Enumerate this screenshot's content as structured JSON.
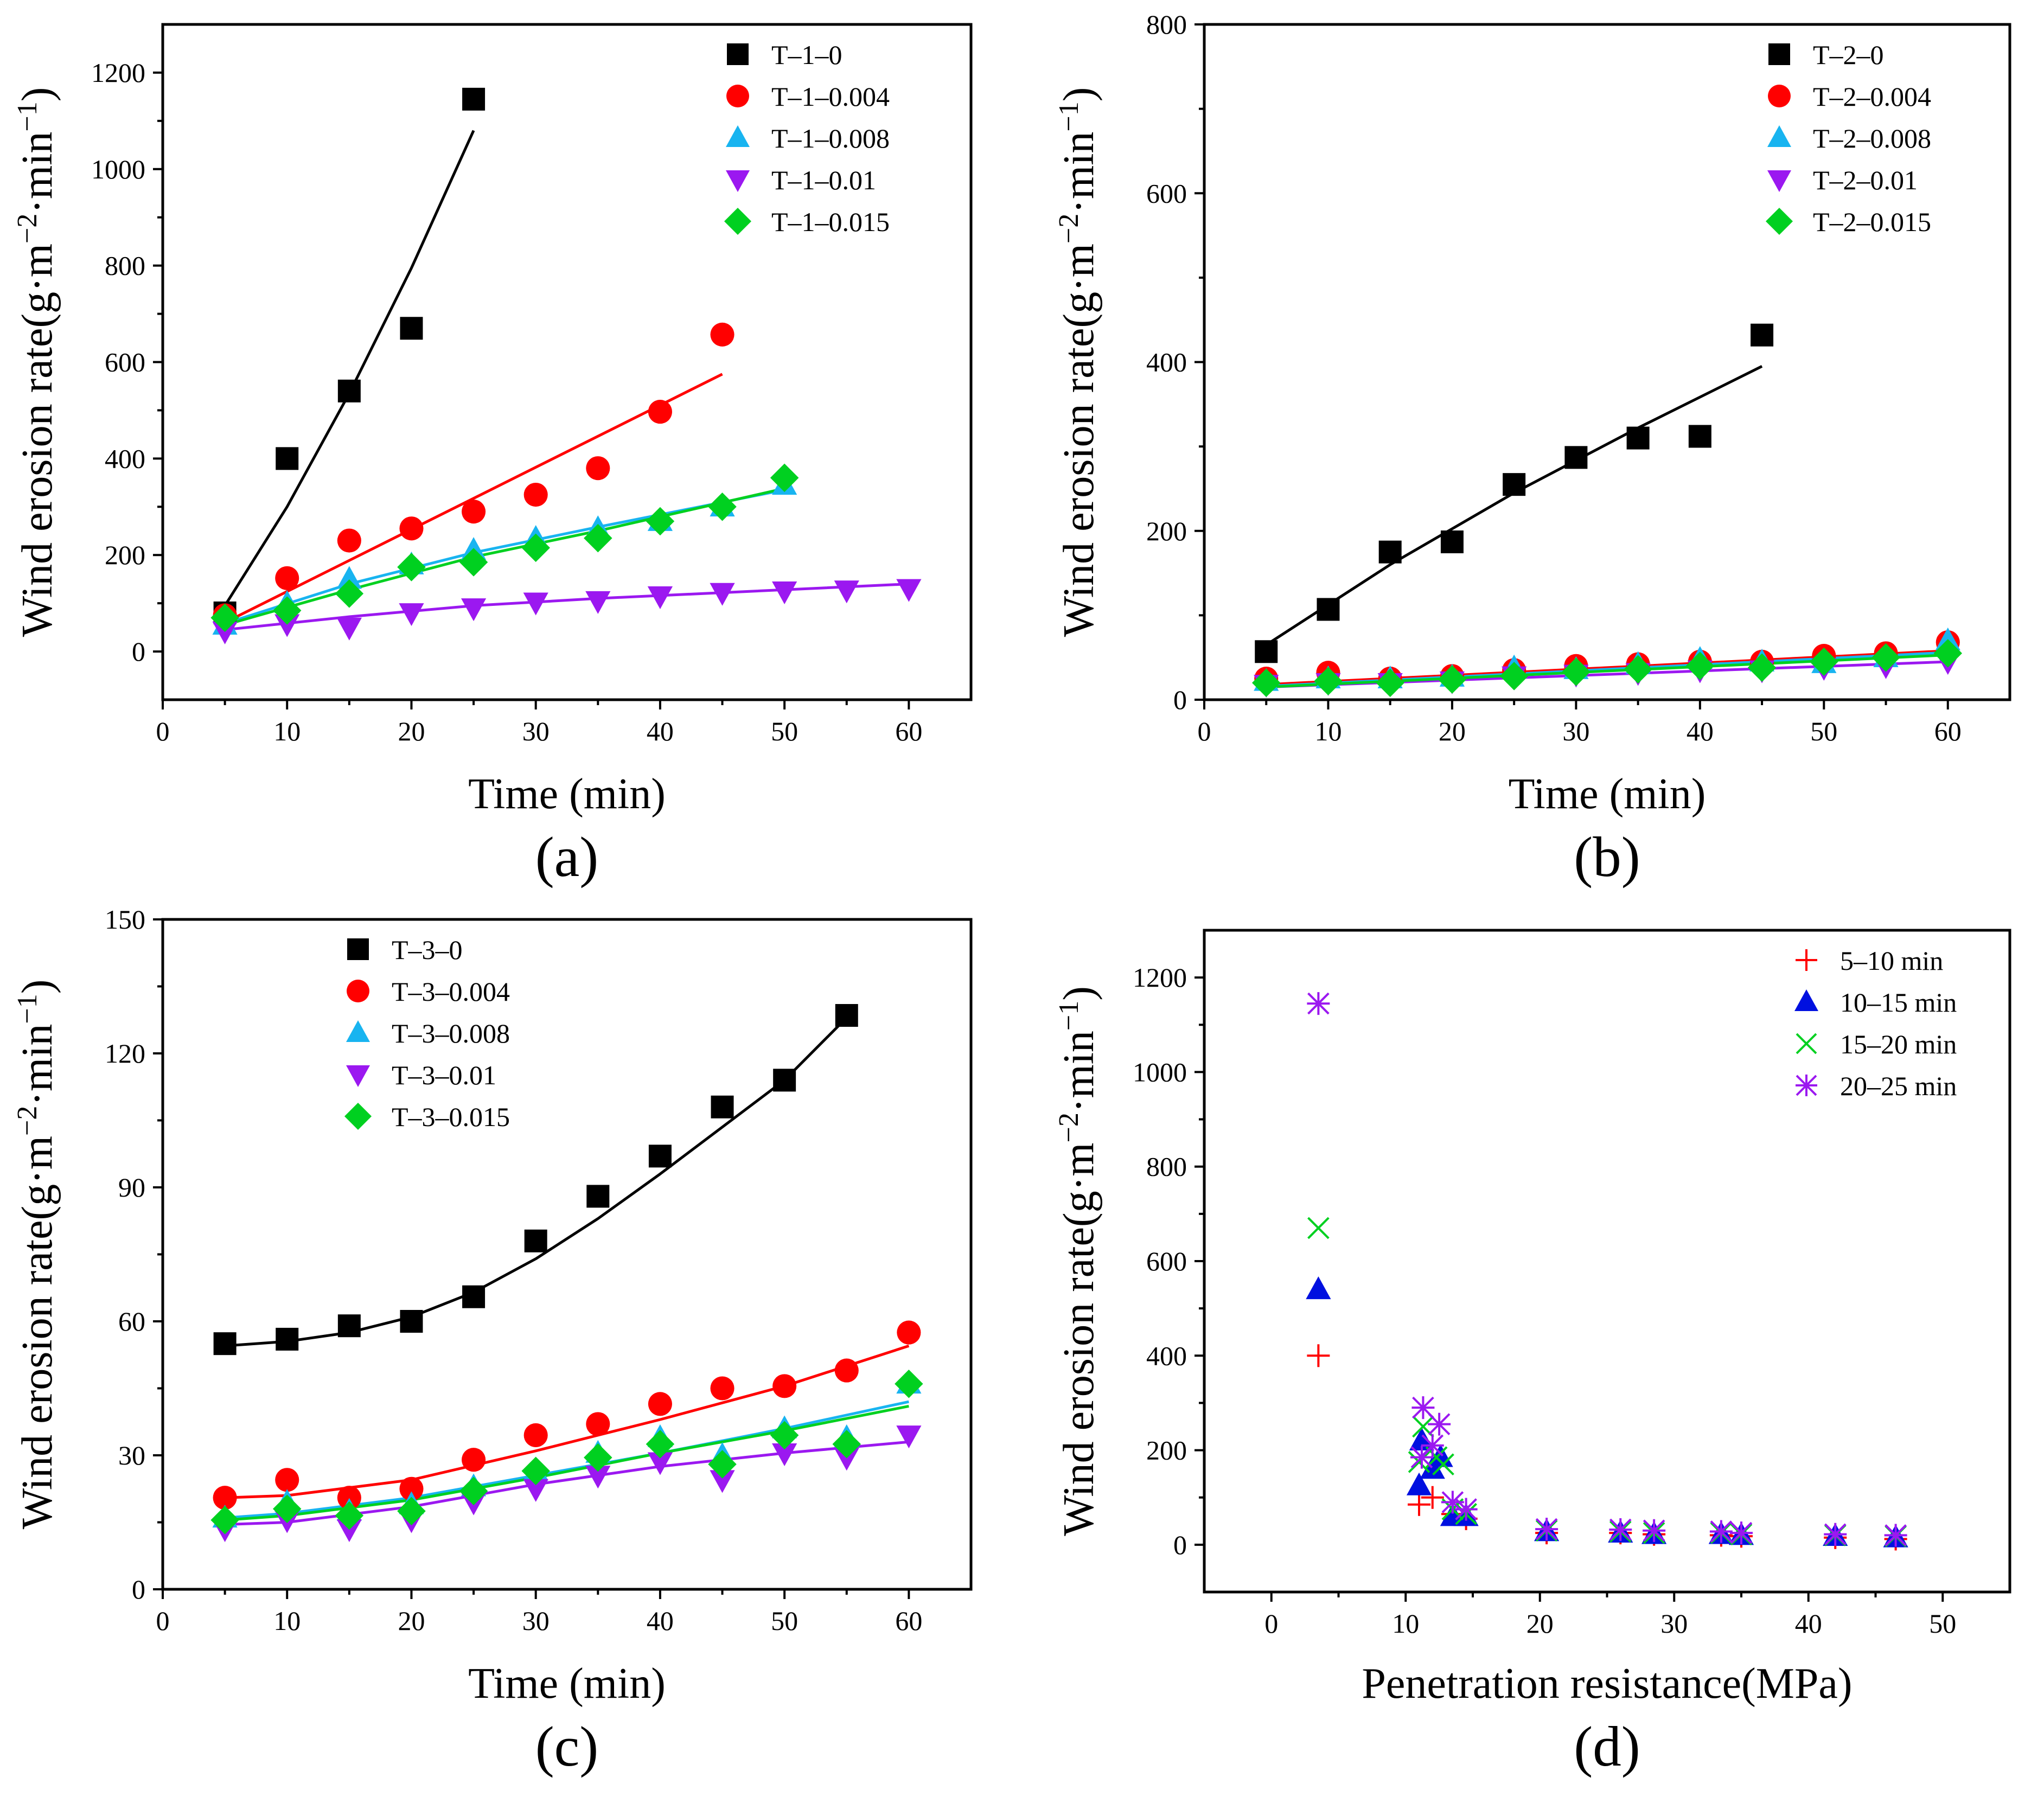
{
  "chart_data": [
    {
      "id": "a",
      "type": "scatter",
      "panel_label": "(a)",
      "xlabel": "Time (min)",
      "ylabel": "Wind erosion rate(g·m⁻²·min⁻¹)",
      "xlim": [
        0,
        65
      ],
      "ylim": [
        -100,
        1300
      ],
      "xticks": [
        0,
        10,
        20,
        30,
        40,
        50,
        60
      ],
      "yticks": [
        0,
        200,
        400,
        600,
        800,
        1000,
        1200
      ],
      "legend_position": "top-right",
      "series": [
        {
          "name": "T–1–0",
          "color": "#000000",
          "marker": "square",
          "x": [
            5,
            10,
            15,
            20,
            25
          ],
          "y": [
            80,
            400,
            540,
            670,
            1145
          ],
          "fit": {
            "x": [
              5,
              10,
              15,
              20,
              25
            ],
            "y": [
              95,
              300,
              535,
              795,
              1080
            ]
          }
        },
        {
          "name": "T–1–0.004",
          "color": "#ff0000",
          "marker": "circle",
          "x": [
            5,
            10,
            15,
            20,
            25,
            30,
            35,
            40,
            45
          ],
          "y": [
            75,
            152,
            230,
            255,
            290,
            325,
            380,
            497,
            657
          ],
          "fit": {
            "x": [
              5,
              45
            ],
            "y": [
              60,
              575
            ]
          }
        },
        {
          "name": "T–1–0.008",
          "color": "#18b4f0",
          "marker": "triangle-up",
          "x": [
            5,
            10,
            15,
            20,
            25,
            30,
            35,
            40,
            45,
            50
          ],
          "y": [
            55,
            100,
            150,
            180,
            210,
            235,
            255,
            270,
            300,
            345
          ],
          "fit": {
            "x": [
              5,
              15,
              25,
              35,
              50
            ],
            "y": [
              58,
              140,
              205,
              258,
              335
            ]
          }
        },
        {
          "name": "T–1–0.01",
          "color": "#9b18f0",
          "marker": "triangle-down",
          "x": [
            5,
            10,
            15,
            20,
            25,
            30,
            35,
            40,
            45,
            50,
            55,
            60
          ],
          "y": [
            42,
            57,
            50,
            80,
            90,
            102,
            105,
            115,
            122,
            125,
            127,
            130
          ],
          "fit": {
            "x": [
              5,
              15,
              25,
              35,
              45,
              60
            ],
            "y": [
              45,
              72,
              95,
              110,
              122,
              140
            ]
          }
        },
        {
          "name": "T–1–0.015",
          "color": "#00d020",
          "marker": "diamond",
          "x": [
            5,
            10,
            15,
            20,
            25,
            30,
            35,
            40,
            45,
            50
          ],
          "y": [
            70,
            85,
            120,
            175,
            185,
            215,
            235,
            270,
            300,
            360
          ],
          "fit": {
            "x": [
              5,
              15,
              25,
              35,
              50
            ],
            "y": [
              55,
              128,
              196,
              250,
              338
            ]
          }
        }
      ]
    },
    {
      "id": "b",
      "type": "scatter",
      "panel_label": "(b)",
      "xlabel": "Time (min)",
      "ylabel": "Wind erosion rate(g·m⁻²·min⁻¹)",
      "xlim": [
        0,
        65
      ],
      "ylim": [
        0,
        800
      ],
      "xticks": [
        0,
        10,
        20,
        30,
        40,
        50,
        60
      ],
      "yticks": [
        0,
        200,
        400,
        600,
        800
      ],
      "legend_position": "top-right",
      "series": [
        {
          "name": "T–2–0",
          "color": "#000000",
          "marker": "square",
          "x": [
            5,
            10,
            15,
            20,
            25,
            30,
            35,
            40,
            45
          ],
          "y": [
            57,
            107,
            175,
            187,
            255,
            287,
            310,
            312,
            432
          ],
          "fit": {
            "x": [
              5,
              15,
              25,
              35,
              45
            ],
            "y": [
              65,
              160,
              245,
              322,
              395
            ]
          }
        },
        {
          "name": "T–2–0.004",
          "color": "#ff0000",
          "marker": "circle",
          "x": [
            5,
            10,
            15,
            20,
            25,
            30,
            35,
            40,
            45,
            50,
            55,
            60
          ],
          "y": [
            25,
            32,
            25,
            28,
            35,
            40,
            42,
            45,
            45,
            52,
            55,
            68
          ],
          "fit": {
            "x": [
              5,
              60
            ],
            "y": [
              18,
              58
            ]
          }
        },
        {
          "name": "T–2–0.008",
          "color": "#18b4f0",
          "marker": "triangle-up",
          "x": [
            5,
            10,
            15,
            20,
            25,
            30,
            35,
            40,
            45,
            50,
            55,
            60
          ],
          "y": [
            22,
            25,
            25,
            27,
            38,
            36,
            42,
            48,
            45,
            43,
            50,
            70
          ],
          "fit": {
            "x": [
              5,
              60
            ],
            "y": [
              16,
              56
            ]
          }
        },
        {
          "name": "T–2–0.01",
          "color": "#9b18f0",
          "marker": "triangle-down",
          "x": [
            5,
            10,
            15,
            20,
            25,
            30,
            35,
            40,
            45,
            50,
            55,
            60
          ],
          "y": [
            18,
            20,
            20,
            22,
            28,
            30,
            32,
            35,
            35,
            38,
            40,
            45
          ],
          "fit": {
            "x": [
              5,
              60
            ],
            "y": [
              15,
              45
            ]
          }
        },
        {
          "name": "T–2–0.015",
          "color": "#00d020",
          "marker": "diamond",
          "x": [
            5,
            10,
            15,
            20,
            25,
            30,
            35,
            40,
            45,
            50,
            55,
            60
          ],
          "y": [
            20,
            22,
            20,
            24,
            28,
            33,
            36,
            40,
            38,
            45,
            50,
            55
          ],
          "fit": {
            "x": [
              5,
              60
            ],
            "y": [
              15,
              53
            ]
          }
        }
      ]
    },
    {
      "id": "c",
      "type": "scatter",
      "panel_label": "(c)",
      "xlabel": "Time (min)",
      "ylabel": "Wind erosion rate(g·m⁻²·min⁻¹)",
      "xlim": [
        0,
        65
      ],
      "ylim": [
        0,
        150
      ],
      "xticks": [
        0,
        10,
        20,
        30,
        40,
        50,
        60
      ],
      "yticks": [
        0,
        30,
        60,
        90,
        120,
        150
      ],
      "legend_position": "top-left",
      "series": [
        {
          "name": "T–3–0",
          "color": "#000000",
          "marker": "square",
          "x": [
            5,
            10,
            15,
            20,
            25,
            30,
            35,
            40,
            45,
            50,
            55
          ],
          "y": [
            55,
            56,
            59,
            60,
            65.5,
            78,
            88,
            97,
            108,
            114,
            128.5
          ],
          "fit": {
            "x": [
              5,
              10,
              15,
              20,
              25,
              30,
              35,
              40,
              45,
              50,
              55
            ],
            "y": [
              54.5,
              55.5,
              57.5,
              61,
              66.5,
              74,
              83,
              93,
              103.5,
              114,
              128
            ]
          }
        },
        {
          "name": "T–3–0.004",
          "color": "#ff0000",
          "marker": "circle",
          "x": [
            5,
            10,
            15,
            20,
            25,
            30,
            35,
            40,
            45,
            50,
            55,
            60
          ],
          "y": [
            20.5,
            24.5,
            20.5,
            22.5,
            29,
            34.5,
            37,
            41.5,
            45,
            45.5,
            49,
            57.5
          ],
          "fit": {
            "x": [
              5,
              10,
              20,
              30,
              40,
              50,
              60
            ],
            "y": [
              20.5,
              21,
              24.5,
              31,
              38,
              45.5,
              54.5
            ]
          }
        },
        {
          "name": "T–3–0.008",
          "color": "#18b4f0",
          "marker": "triangle-up",
          "x": [
            5,
            10,
            15,
            20,
            25,
            30,
            35,
            40,
            45,
            50,
            55,
            60
          ],
          "y": [
            16,
            19.5,
            17.5,
            19,
            23,
            26.5,
            30.5,
            34,
            30,
            36,
            34,
            46
          ],
          "fit": {
            "x": [
              5,
              10,
              20,
              30,
              40,
              50,
              60
            ],
            "y": [
              16,
              17,
              20.5,
              25.5,
              30.5,
              36,
              42
            ]
          }
        },
        {
          "name": "T–3–0.01",
          "color": "#9b18f0",
          "marker": "triangle-down",
          "x": [
            5,
            10,
            15,
            20,
            25,
            30,
            35,
            40,
            45,
            50,
            55,
            60
          ],
          "y": [
            13.5,
            15.5,
            13.5,
            15.5,
            19.5,
            22.5,
            25.5,
            28.5,
            24.5,
            30.5,
            29.5,
            34.5
          ],
          "fit": {
            "x": [
              5,
              10,
              20,
              30,
              40,
              50,
              60
            ],
            "y": [
              14.5,
              15,
              18.5,
              23.5,
              27.5,
              30.5,
              33
            ]
          }
        },
        {
          "name": "T–3–0.015",
          "color": "#00d020",
          "marker": "diamond",
          "x": [
            5,
            10,
            15,
            20,
            25,
            30,
            35,
            40,
            45,
            50,
            55,
            60
          ],
          "y": [
            15.5,
            18,
            16.5,
            17.5,
            22,
            26.5,
            29.5,
            32.5,
            28,
            34.5,
            32.5,
            46
          ],
          "fit": {
            "x": [
              5,
              10,
              20,
              30,
              40,
              50,
              60
            ],
            "y": [
              15.5,
              16.5,
              20,
              25,
              30.5,
              35.5,
              41
            ]
          }
        }
      ]
    },
    {
      "id": "d",
      "type": "scatter",
      "panel_label": "(d)",
      "xlabel": "Penetration resistance(MPa)",
      "ylabel": "Wind erosion rate(g·m⁻²·min⁻¹)",
      "xlim": [
        -5,
        55
      ],
      "ylim": [
        -100,
        1300
      ],
      "xticks": [
        0,
        10,
        20,
        30,
        40,
        50
      ],
      "yticks": [
        0,
        200,
        400,
        600,
        800,
        1000,
        1200
      ],
      "legend_position": "top-right",
      "series": [
        {
          "name": "5–10 min",
          "color": "#ff0000",
          "marker": "plus",
          "x": [
            3.5,
            11,
            12,
            13.5,
            14.5,
            20.5,
            26,
            28.5,
            33.5,
            35,
            42,
            46.5
          ],
          "y": [
            400,
            85,
            100,
            65,
            55,
            25,
            25,
            22,
            20,
            18,
            15,
            12
          ]
        },
        {
          "name": "10–15 min",
          "color": "#0010e0",
          "marker": "triangle-up",
          "x": [
            3.5,
            11,
            11.2,
            12,
            12.6,
            13.5,
            14.5,
            20.5,
            26,
            28.5,
            33.5,
            35,
            42,
            46.5
          ],
          "y": [
            540,
            125,
            220,
            160,
            185,
            60,
            60,
            28,
            25,
            22,
            22,
            20,
            18,
            15
          ]
        },
        {
          "name": "15–20 min",
          "color": "#00d020",
          "marker": "x",
          "x": [
            3.5,
            11,
            11.3,
            12.3,
            12.8,
            13.5,
            14.5,
            20.5,
            26,
            28.5,
            33.5,
            35,
            42,
            46.5
          ],
          "y": [
            670,
            175,
            250,
            185,
            170,
            75,
            65,
            30,
            28,
            25,
            25,
            22,
            20,
            18
          ]
        },
        {
          "name": "20–25 min",
          "color": "#9b18f0",
          "marker": "asterisk",
          "x": [
            3.5,
            11.2,
            11.3,
            12,
            12.5,
            13.5,
            14.5,
            20.5,
            26,
            28.5,
            33.5,
            35,
            42,
            46.5
          ],
          "y": [
            1145,
            185,
            290,
            210,
            255,
            90,
            75,
            33,
            32,
            30,
            28,
            25,
            22,
            20
          ]
        }
      ]
    }
  ]
}
